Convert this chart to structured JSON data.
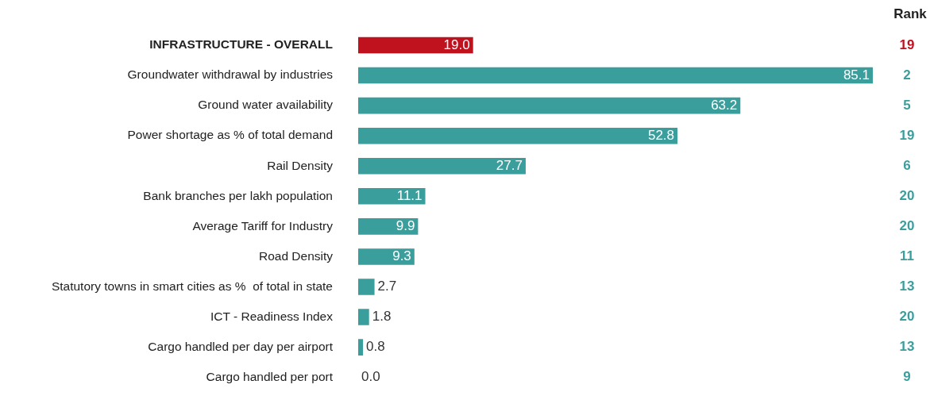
{
  "chart_data": {
    "type": "bar",
    "orientation": "horizontal",
    "categories": [
      "INFRASTRUCTURE - OVERALL",
      "Groundwater withdrawal by industries",
      "Ground water availability",
      "Power shortage as % of total demand",
      "Rail Density",
      "Bank branches per lakh population",
      "Average Tariff for Industry",
      "Road Density",
      "Statutory towns in smart cities as %  of total in state",
      "ICT - Readiness Index",
      "Cargo handled per day per airport",
      "Cargo handled per port"
    ],
    "values": [
      19.0,
      85.1,
      63.2,
      52.8,
      27.7,
      11.1,
      9.9,
      9.3,
      2.7,
      1.8,
      0.8,
      0.0
    ],
    "value_labels": [
      "19.0",
      "85.1",
      "63.2",
      "52.8",
      "27.7",
      "11.1",
      "9.9",
      "9.3",
      "2.7",
      "1.8",
      "0.8",
      "0.0"
    ],
    "colors": [
      "#c0111f",
      "#3a9e9c",
      "#3a9e9c",
      "#3a9e9c",
      "#3a9e9c",
      "#3a9e9c",
      "#3a9e9c",
      "#3a9e9c",
      "#3a9e9c",
      "#3a9e9c",
      "#3a9e9c",
      "#3a9e9c"
    ],
    "grid": false,
    "legend": false,
    "annotations": [
      "Rank",
      "19",
      "2",
      "5",
      "19",
      "6",
      "20",
      "20",
      "11",
      "13",
      "20",
      "13",
      "9"
    ]
  }
}
